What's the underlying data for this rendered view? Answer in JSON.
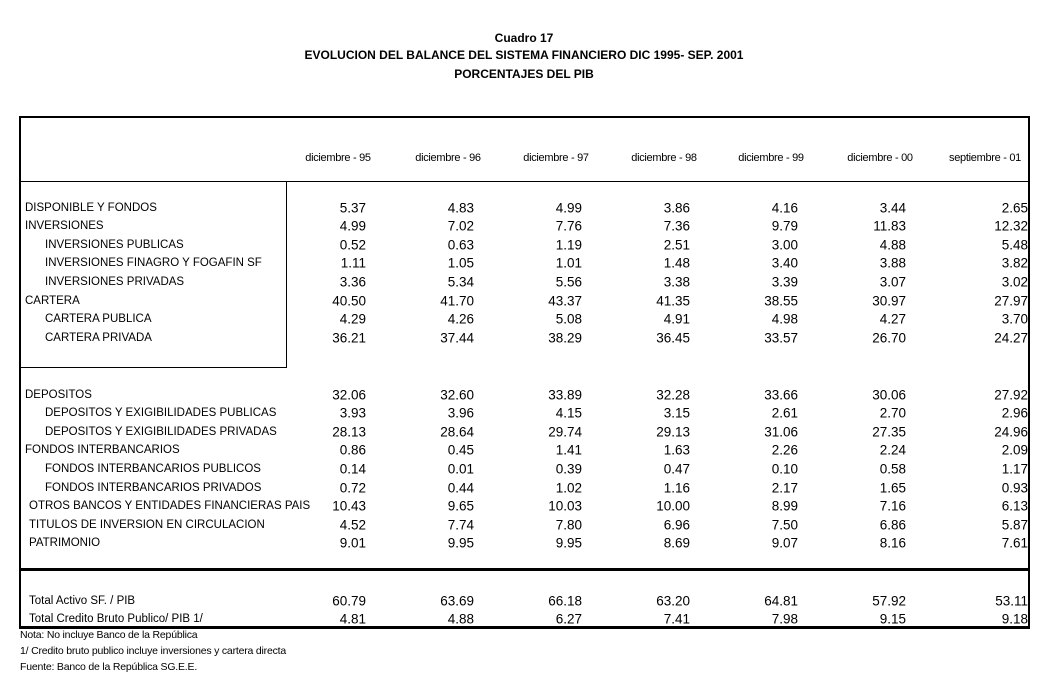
{
  "header": {
    "title": "Cuadro 17",
    "subtitle": "EVOLUCION DEL BALANCE DEL SISTEMA FINANCIERO  DIC 1995- SEP. 2001",
    "subtitle2": "PORCENTAJES DEL PIB"
  },
  "table": {
    "columns": [
      "diciembre - 95",
      "diciembre - 96",
      "diciembre - 97",
      "diciembre - 98",
      "diciembre - 99",
      "diciembre - 00",
      "septiembre  - 01"
    ],
    "sections": [
      [
        [
          "DISPONIBLE Y FONDOS",
          "5.37",
          "4.83",
          "4.99",
          "3.86",
          "4.16",
          "3.44",
          "2.65"
        ],
        [
          "INVERSIONES",
          "4.99",
          "7.02",
          "7.76",
          "7.36",
          "9.79",
          "11.83",
          "12.32"
        ],
        [
          "INVERSIONES PUBLICAS",
          "0.52",
          "0.63",
          "1.19",
          "2.51",
          "3.00",
          "4.88",
          "5.48"
        ],
        [
          "INVERSIONES FINAGRO Y  FOGAFIN SF",
          "1.11",
          "1.05",
          "1.01",
          "1.48",
          "3.40",
          "3.88",
          "3.82"
        ],
        [
          "INVERSIONES PRIVADAS",
          "3.36",
          "5.34",
          "5.56",
          "3.38",
          "3.39",
          "3.07",
          "3.02"
        ],
        [
          "CARTERA",
          "40.50",
          "41.70",
          "43.37",
          "41.35",
          "38.55",
          "30.97",
          "27.97"
        ],
        [
          "CARTERA  PUBLICA",
          "4.29",
          "4.26",
          "5.08",
          "4.91",
          "4.98",
          "4.27",
          "3.70"
        ],
        [
          "CARTERA PRIVADA",
          "36.21",
          "37.44",
          "38.29",
          "36.45",
          "33.57",
          "26.70",
          "24.27"
        ]
      ],
      [
        [
          "DEPOSITOS",
          "32.06",
          "32.60",
          "33.89",
          "32.28",
          "33.66",
          "30.06",
          "27.92"
        ],
        [
          "DEPOSITOS Y EXIGIBILIDADES PUBLICAS",
          "3.93",
          "3.96",
          "4.15",
          "3.15",
          "2.61",
          "2.70",
          "2.96"
        ],
        [
          "DEPOSITOS Y EXIGIBILIDADES PRIVADAS",
          "28.13",
          "28.64",
          "29.74",
          "29.13",
          "31.06",
          "27.35",
          "24.96"
        ],
        [
          "FONDOS INTERBANCARIOS",
          "0.86",
          "0.45",
          "1.41",
          "1.63",
          "2.26",
          "2.24",
          "2.09"
        ],
        [
          "FONDOS INTERBANCARIOS PUBLICOS",
          "0.14",
          "0.01",
          "0.39",
          "0.47",
          "0.10",
          "0.58",
          "1.17"
        ],
        [
          "FONDOS INTERBANCARIOS PRIVADOS",
          "0.72",
          "0.44",
          "1.02",
          "1.16",
          "2.17",
          "1.65",
          "0.93"
        ],
        [
          "OTROS BANCOS Y ENTIDADES FINANCIERAS PAIS",
          "10.43",
          "9.65",
          "10.03",
          "10.00",
          "8.99",
          "7.16",
          "6.13"
        ],
        [
          "TITULOS DE INVERSION EN CIRCULACION",
          "4.52",
          "7.74",
          "7.80",
          "6.96",
          "7.50",
          "6.86",
          "5.87"
        ],
        [
          "PATRIMONIO",
          "9.01",
          "9.95",
          "9.95",
          "8.69",
          "9.07",
          "8.16",
          "7.61"
        ]
      ],
      [
        [
          "Total Activo SF. / PIB",
          "60.79",
          "63.69",
          "66.18",
          "63.20",
          "64.81",
          "57.92",
          "53.11"
        ],
        [
          "Total Credito Bruto Publico/ PIB 1/",
          "4.81",
          "4.88",
          "6.27",
          "7.41",
          "7.98",
          "9.15",
          "9.18"
        ]
      ]
    ]
  },
  "notes": [
    "Nota:  No incluye Banco de la República",
    "1/ Credito bruto publico incluye inversiones y cartera directa",
    "Fuente: Banco de la República SG.E.E."
  ]
}
